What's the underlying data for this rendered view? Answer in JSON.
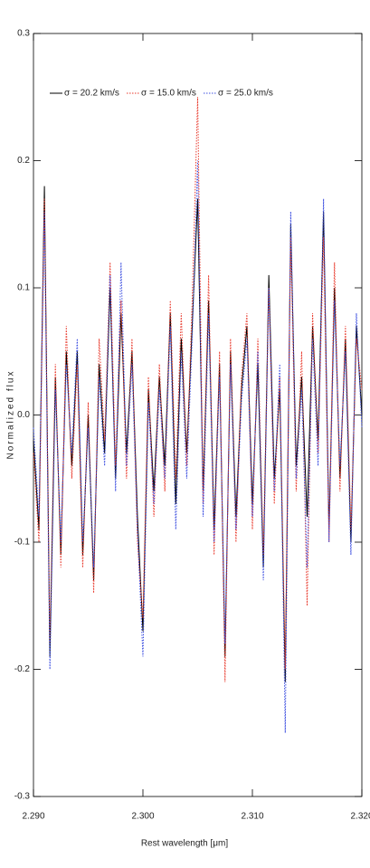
{
  "chart_data": {
    "type": "line",
    "xlabel": "Rest wavelength [μm]",
    "ylabel": "Normalized flux",
    "x": [
      2.29,
      2.2905,
      2.291,
      2.2915,
      2.292,
      2.2925,
      2.293,
      2.2935,
      2.294,
      2.2945,
      2.295,
      2.2955,
      2.296,
      2.2965,
      2.297,
      2.2975,
      2.298,
      2.2985,
      2.299,
      2.2995,
      2.3,
      2.3005,
      2.301,
      2.3015,
      2.302,
      2.3025,
      2.303,
      2.3035,
      2.304,
      2.3045,
      2.305,
      2.3055,
      2.306,
      2.3065,
      2.307,
      2.3075,
      2.308,
      2.3085,
      2.309,
      2.3095,
      2.31,
      2.3105,
      2.311,
      2.3115,
      2.312,
      2.3125,
      2.313,
      2.3135,
      2.314,
      2.3145,
      2.315,
      2.3155,
      2.316,
      2.3165,
      2.317,
      2.3175,
      2.318,
      2.3185,
      2.319,
      2.3195,
      2.32
    ],
    "series": [
      {
        "name": "σ = 20.2 km/s",
        "color": "#000000",
        "dash": "solid",
        "values": [
          -0.02,
          -0.09,
          0.18,
          -0.19,
          0.03,
          -0.11,
          0.05,
          -0.04,
          0.05,
          -0.11,
          0.0,
          -0.13,
          0.04,
          -0.03,
          0.1,
          -0.05,
          0.08,
          -0.03,
          0.05,
          -0.08,
          -0.17,
          0.02,
          -0.06,
          0.03,
          -0.04,
          0.08,
          -0.07,
          0.06,
          -0.03,
          0.07,
          0.17,
          -0.06,
          0.09,
          -0.09,
          0.04,
          -0.19,
          0.05,
          -0.08,
          0.02,
          0.07,
          -0.07,
          0.04,
          -0.12,
          0.11,
          -0.05,
          0.02,
          -0.21,
          0.15,
          -0.04,
          0.03,
          -0.08,
          0.07,
          -0.02,
          0.16,
          -0.09,
          0.1,
          -0.05,
          0.06,
          -0.1,
          0.07,
          0.0
        ]
      },
      {
        "name": "σ = 15.0 km/s",
        "color": "#e8382b",
        "dash": "dotted",
        "values": [
          -0.03,
          -0.1,
          0.17,
          -0.18,
          0.04,
          -0.12,
          0.07,
          -0.05,
          0.04,
          -0.12,
          0.01,
          -0.14,
          0.06,
          -0.02,
          0.12,
          -0.04,
          0.09,
          -0.05,
          0.06,
          -0.1,
          -0.16,
          0.03,
          -0.08,
          0.04,
          -0.06,
          0.09,
          -0.05,
          0.08,
          -0.04,
          0.09,
          0.25,
          -0.07,
          0.11,
          -0.11,
          0.05,
          -0.21,
          0.06,
          -0.1,
          0.03,
          0.08,
          -0.09,
          0.06,
          -0.11,
          0.1,
          -0.07,
          0.03,
          -0.2,
          0.14,
          -0.06,
          0.05,
          -0.15,
          0.08,
          -0.03,
          0.14,
          -0.1,
          0.12,
          -0.06,
          0.07,
          -0.09,
          0.06,
          0.02
        ]
      },
      {
        "name": "σ = 25.0 km/s",
        "color": "#3d4fe0",
        "dash": "dotted",
        "values": [
          -0.01,
          -0.08,
          0.16,
          -0.2,
          0.02,
          -0.1,
          0.04,
          -0.03,
          0.06,
          -0.1,
          -0.01,
          -0.12,
          0.03,
          -0.04,
          0.11,
          -0.06,
          0.12,
          -0.04,
          0.04,
          -0.09,
          -0.19,
          0.01,
          -0.07,
          0.02,
          -0.05,
          0.07,
          -0.09,
          0.05,
          -0.05,
          0.06,
          0.2,
          -0.08,
          0.08,
          -0.1,
          0.03,
          -0.18,
          0.04,
          -0.09,
          0.01,
          0.06,
          -0.08,
          0.05,
          -0.13,
          0.1,
          -0.06,
          0.04,
          -0.25,
          0.16,
          -0.05,
          0.02,
          -0.12,
          0.06,
          -0.04,
          0.17,
          -0.1,
          0.09,
          -0.04,
          0.05,
          -0.11,
          0.08,
          -0.01
        ]
      }
    ],
    "xlim": [
      2.29,
      2.32
    ],
    "xticks": [
      {
        "value": 2.29,
        "label": "2.290"
      },
      {
        "value": 2.3,
        "label": "2.300"
      },
      {
        "value": 2.31,
        "label": "2.310"
      },
      {
        "value": 2.32,
        "label": "2.320"
      }
    ],
    "ylim": [
      -0.3,
      0.3
    ],
    "yticks": [
      -0.3,
      -0.2,
      -0.1,
      {
        "value": 0,
        "label": "0.0"
      },
      0.1,
      0.2,
      0.3
    ],
    "legend": "top"
  }
}
